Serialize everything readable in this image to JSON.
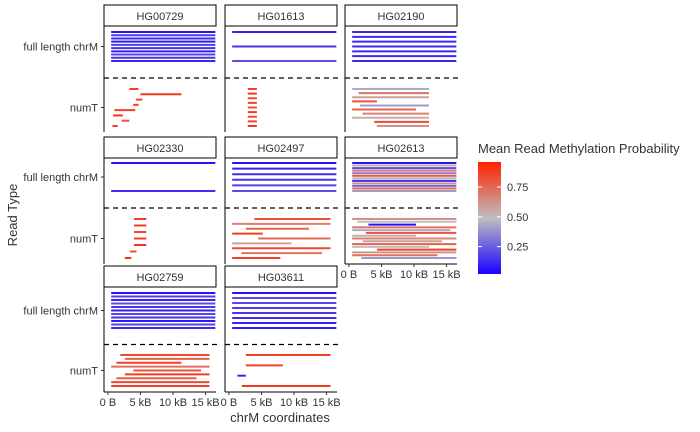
{
  "chart_data": {
    "type": "faceted-segment-plot",
    "xlabel": "chrM coordinates",
    "ylabel": "Read Type",
    "x_ticks": [
      {
        "value": 0,
        "label": "0 B"
      },
      {
        "value": 5000,
        "label": "5 kB"
      },
      {
        "value": 10000,
        "label": "10 kB"
      },
      {
        "value": 15000,
        "label": "15 kB"
      }
    ],
    "xlim": [
      -600,
      16600
    ],
    "row_categories": [
      "full length chrM",
      "numT"
    ],
    "legend": {
      "title": "Mean Read Methylation Probability",
      "ticks": [
        0.25,
        0.5,
        0.75
      ],
      "range": [
        0.02,
        0.96
      ],
      "colors": {
        "low": "#1a00ff",
        "mid": "#bfbfbf",
        "high": "#ff2200"
      },
      "placement": "right"
    },
    "panels": [
      {
        "label": "HG00729",
        "full_length": {
          "count": 10,
          "x_start": 500,
          "x_end": 16500,
          "meth_range": [
            0.05,
            0.18
          ]
        },
        "numt": [
          {
            "start": 3300,
            "end": 4700,
            "meth": 0.9
          },
          {
            "start": 5000,
            "end": 11300,
            "meth": 0.93
          },
          {
            "start": 4300,
            "end": 5300,
            "meth": 0.88
          },
          {
            "start": 3900,
            "end": 4700,
            "meth": 0.92
          },
          {
            "start": 1000,
            "end": 4200,
            "meth": 0.9
          },
          {
            "start": 800,
            "end": 2300,
            "meth": 0.95
          },
          {
            "start": 2100,
            "end": 3300,
            "meth": 0.85
          },
          {
            "start": 700,
            "end": 1500,
            "meth": 0.92
          }
        ]
      },
      {
        "label": "HG01613",
        "full_length": {
          "count": 3,
          "x_start": 500,
          "x_end": 16500,
          "meth_range": [
            0.08,
            0.2
          ]
        },
        "numt": [
          {
            "start": 2900,
            "end": 4300,
            "meth": 0.9
          },
          {
            "start": 2900,
            "end": 4300,
            "meth": 0.92
          },
          {
            "start": 2900,
            "end": 4300,
            "meth": 0.88
          },
          {
            "start": 2900,
            "end": 4300,
            "meth": 0.9
          },
          {
            "start": 2900,
            "end": 4300,
            "meth": 0.85
          },
          {
            "start": 2900,
            "end": 4300,
            "meth": 0.93
          },
          {
            "start": 2900,
            "end": 4300,
            "meth": 0.87
          },
          {
            "start": 2900,
            "end": 4300,
            "meth": 0.9
          },
          {
            "start": 2900,
            "end": 4300,
            "meth": 0.92
          }
        ]
      },
      {
        "label": "HG02190",
        "full_length": {
          "count": 7,
          "x_start": 500,
          "x_end": 16500,
          "meth_range": [
            0.1,
            0.3
          ]
        },
        "numt": [
          {
            "start": 500,
            "end": 12300,
            "meth": 0.45
          },
          {
            "start": 1500,
            "end": 12300,
            "meth": 0.75
          },
          {
            "start": 500,
            "end": 12300,
            "meth": 0.6
          },
          {
            "start": 500,
            "end": 4300,
            "meth": 0.85
          },
          {
            "start": 1700,
            "end": 12300,
            "meth": 0.4
          },
          {
            "start": 500,
            "end": 10300,
            "meth": 0.8
          },
          {
            "start": 2100,
            "end": 12300,
            "meth": 0.7
          },
          {
            "start": 500,
            "end": 12300,
            "meth": 0.55
          },
          {
            "start": 3900,
            "end": 12300,
            "meth": 0.88
          },
          {
            "start": 4300,
            "end": 12300,
            "meth": 0.65
          }
        ]
      },
      {
        "label": "HG02330",
        "full_length": {
          "count": 2,
          "x_start": 500,
          "x_end": 16500,
          "meth_range": [
            0.05,
            0.12
          ]
        },
        "numt": [
          {
            "start": 4000,
            "end": 5900,
            "meth": 0.9
          },
          {
            "start": 4000,
            "end": 5900,
            "meth": 0.92
          },
          {
            "start": 4000,
            "end": 5900,
            "meth": 0.88
          },
          {
            "start": 4000,
            "end": 5900,
            "meth": 0.9
          },
          {
            "start": 4000,
            "end": 5900,
            "meth": 0.93
          },
          {
            "start": 3400,
            "end": 4400,
            "meth": 0.85
          },
          {
            "start": 2600,
            "end": 3600,
            "meth": 0.95
          }
        ]
      },
      {
        "label": "HG02497",
        "full_length": {
          "count": 6,
          "x_start": 500,
          "x_end": 16500,
          "meth_range": [
            0.05,
            0.2
          ]
        },
        "numt": [
          {
            "start": 3900,
            "end": 15600,
            "meth": 0.85
          },
          {
            "start": 500,
            "end": 15600,
            "meth": 0.7
          },
          {
            "start": 2600,
            "end": 12300,
            "meth": 0.8
          },
          {
            "start": 500,
            "end": 5200,
            "meth": 0.92
          },
          {
            "start": 4500,
            "end": 15600,
            "meth": 0.78
          },
          {
            "start": 500,
            "end": 9600,
            "meth": 0.6
          },
          {
            "start": 500,
            "end": 15600,
            "meth": 0.88
          },
          {
            "start": 1900,
            "end": 14300,
            "meth": 0.75
          },
          {
            "start": 500,
            "end": 7900,
            "meth": 0.9
          }
        ]
      },
      {
        "label": "HG02613",
        "full_length": {
          "count": 12,
          "x_start": 500,
          "x_end": 16500,
          "meth_range": [
            0.05,
            0.85
          ]
        },
        "numt": [
          {
            "start": 500,
            "end": 16500,
            "meth": 0.65
          },
          {
            "start": 1300,
            "end": 16500,
            "meth": 0.5
          },
          {
            "start": 3000,
            "end": 10300,
            "meth": 0.05
          },
          {
            "start": 500,
            "end": 16500,
            "meth": 0.75
          },
          {
            "start": 500,
            "end": 15600,
            "meth": 0.45
          },
          {
            "start": 2600,
            "end": 16500,
            "meth": 0.85
          },
          {
            "start": 500,
            "end": 10300,
            "meth": 0.55
          },
          {
            "start": 500,
            "end": 16500,
            "meth": 0.7
          },
          {
            "start": 2100,
            "end": 14300,
            "meth": 0.6
          },
          {
            "start": 500,
            "end": 16500,
            "meth": 0.8
          },
          {
            "start": 500,
            "end": 12300,
            "meth": 0.5
          },
          {
            "start": 4300,
            "end": 16500,
            "meth": 0.9
          },
          {
            "start": 500,
            "end": 16500,
            "meth": 0.65
          },
          {
            "start": 500,
            "end": 13600,
            "meth": 0.75
          },
          {
            "start": 1900,
            "end": 16500,
            "meth": 0.4
          }
        ]
      },
      {
        "label": "HG02759",
        "full_length": {
          "count": 11,
          "x_start": 500,
          "x_end": 16500,
          "meth_range": [
            0.05,
            0.2
          ]
        },
        "numt": [
          {
            "start": 1900,
            "end": 15600,
            "meth": 0.88
          },
          {
            "start": 2600,
            "end": 15600,
            "meth": 0.8
          },
          {
            "start": 1300,
            "end": 11300,
            "meth": 0.9
          },
          {
            "start": 500,
            "end": 15600,
            "meth": 0.75
          },
          {
            "start": 3900,
            "end": 14300,
            "meth": 0.85
          },
          {
            "start": 2600,
            "end": 15600,
            "meth": 0.92
          },
          {
            "start": 1300,
            "end": 13600,
            "meth": 0.8
          },
          {
            "start": 500,
            "end": 15600,
            "meth": 0.88
          },
          {
            "start": 500,
            "end": 15600,
            "meth": 0.9
          }
        ]
      },
      {
        "label": "HG03611",
        "full_length": {
          "count": 8,
          "x_start": 500,
          "x_end": 16500,
          "meth_range": [
            0.05,
            0.2
          ]
        },
        "numt": [
          {
            "start": 2600,
            "end": 15600,
            "meth": 0.9
          },
          {
            "start": 2600,
            "end": 8300,
            "meth": 0.88
          },
          {
            "start": 1300,
            "end": 2600,
            "meth": 0.1
          },
          {
            "start": 2000,
            "end": 15600,
            "meth": 0.92
          }
        ]
      }
    ]
  }
}
